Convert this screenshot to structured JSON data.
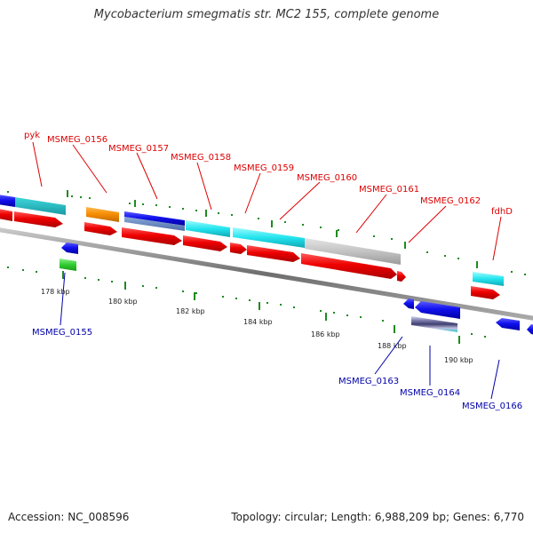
{
  "title": "Mycobacterium smegmatis str. MC2 155, complete genome",
  "accession_label": "Accession: NC_008596",
  "summary_label": "Topology: circular; Length: 6,988,209 bp; Genes: 6,770",
  "colors": {
    "backbone": "#8a8a8a",
    "label_top": "#dd0000",
    "label_bottom": "#0000aa",
    "tick": "#1f8a1f"
  },
  "scale_ticks": [
    "178 kbp",
    "180 kbp",
    "182 kbp",
    "184 kbp",
    "186 kbp",
    "188 kbp",
    "190 kbp"
  ],
  "top_labels": [
    "pyk",
    "MSMEG_0156",
    "MSMEG_0157",
    "MSMEG_0158",
    "MSMEG_0159",
    "MSMEG_0160",
    "MSMEG_0161",
    "MSMEG_0162",
    "fdhD"
  ],
  "bottom_labels": [
    "MSMEG_0155",
    "MSMEG_0163",
    "MSMEG_0164",
    "MSMEG_0166"
  ]
}
